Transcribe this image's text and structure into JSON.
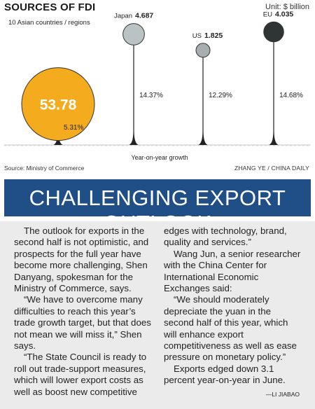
{
  "chart_data": {
    "type": "bubble",
    "title": "SOURCES OF FDI",
    "unit": "Unit: $ billion",
    "xlabel": "Year-on-year growth",
    "series": [
      {
        "name": "10 Asian countries / regions",
        "value": 53.78,
        "growth": 5.31,
        "growth_label": "5.31%",
        "value_label": "53.78",
        "color": "#f4ab1d"
      },
      {
        "name": "Japan",
        "value": 4.687,
        "growth": 14.37,
        "growth_label": "14.37%",
        "value_label": "4.687",
        "color": "#b9c3c3"
      },
      {
        "name": "US",
        "value": 1.825,
        "growth": 12.29,
        "growth_label": "12.29%",
        "value_label": "1.825",
        "color": "#a6aeae"
      },
      {
        "name": "EU",
        "value": 4.035,
        "growth": 14.68,
        "growth_label": "14.68%",
        "value_label": "4.035",
        "color": "#2f3434"
      }
    ],
    "source": "Source: Ministry of Commerce",
    "credit": "ZHANG YE / CHINA DAILY"
  },
  "headline": "CHALLENGING EXPORT OUTLOOK",
  "article": {
    "col1": [
      "The outlook for exports in the second half is not optimistic, and prospects for the full year have become more challenging, Shen Danyang, spokesman for the Ministry of Commerce, says.",
      "“We have to overcome many difficulties to reach this year’s trade growth target, but that does not mean we will miss it,” Shen says.",
      "“The State Council is ready to roll out trade-support measures, which will lower export costs as well as boost new competitive"
    ],
    "col2_cont": "edges with technology, brand, quality and services.”",
    "col2": [
      "Wang Jun, a senior researcher with the China Center for International Economic Exchanges said:",
      "“We should moderately depreciate the yuan in the second half of this year, which will enhance export competitiveness as well as ease pressure on monetary policy.”",
      "Exports edged down 3.1 percent year-on-year in June."
    ],
    "byline": "—LI JIABAO"
  }
}
